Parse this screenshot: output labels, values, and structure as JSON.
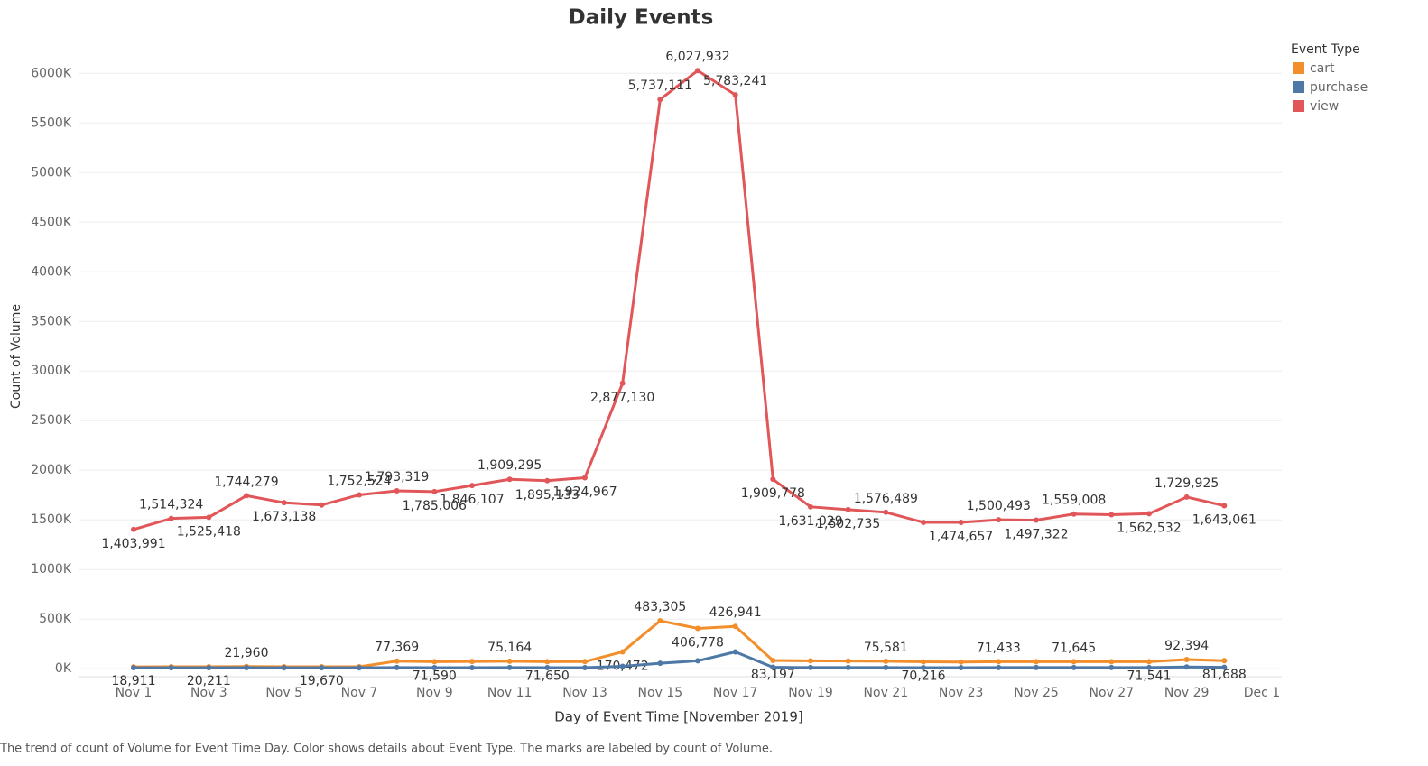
{
  "chart_data": {
    "type": "line",
    "title": "Daily Events",
    "x_label": "Day of Event Time [November 2019]",
    "y_label": "Count of Volume",
    "legend_title": "Event Type",
    "legend_position": "top-right",
    "caption": "The trend of count of Volume for Event Time Day.  Color shows details about Event Type.  The marks are labeled by count of Volume.",
    "categories": [
      "Nov 1",
      null,
      "Nov 3",
      null,
      "Nov 5",
      null,
      "Nov 7",
      null,
      "Nov 9",
      null,
      "Nov 11",
      null,
      "Nov 13",
      null,
      "Nov 15",
      null,
      "Nov 17",
      null,
      "Nov 19",
      null,
      "Nov 21",
      null,
      "Nov 23",
      null,
      "Nov 25",
      null,
      "Nov 27",
      null,
      "Nov 29",
      null,
      "Dec 1"
    ],
    "ylim": [
      -80000,
      6330000
    ],
    "yticks": [
      {
        "value": 0,
        "label": "0K"
      },
      {
        "value": 500000,
        "label": "500K"
      },
      {
        "value": 1000000,
        "label": "1000K"
      },
      {
        "value": 1500000,
        "label": "1500K"
      },
      {
        "value": 2000000,
        "label": "2000K"
      },
      {
        "value": 2500000,
        "label": "2500K"
      },
      {
        "value": 3000000,
        "label": "3000K"
      },
      {
        "value": 3500000,
        "label": "3500K"
      },
      {
        "value": 4000000,
        "label": "4000K"
      },
      {
        "value": 4500000,
        "label": "4500K"
      },
      {
        "value": 5000000,
        "label": "5000K"
      },
      {
        "value": 5500000,
        "label": "5500K"
      },
      {
        "value": 6000000,
        "label": "6000K"
      }
    ],
    "grid": true,
    "series": [
      {
        "name": "cart",
        "color": "#f28e2b",
        "values": [
          18911,
          19500,
          20211,
          21960,
          20000,
          19670,
          20000,
          77369,
          71590,
          73000,
          75164,
          71650,
          72000,
          170472,
          483305,
          406778,
          426941,
          83197,
          80000,
          78000,
          75581,
          70216,
          68000,
          71433,
          71000,
          71645,
          71000,
          71541,
          92394,
          81688,
          null
        ],
        "value_labels": [
          "18,911",
          null,
          "20,211",
          "21,960",
          null,
          "19,670",
          null,
          "77,369",
          "71,590",
          null,
          "75,164",
          "71,650",
          null,
          "170,472",
          "483,305",
          "406,778",
          "426,941",
          "83,197",
          null,
          null,
          "75,581",
          "70,216",
          null,
          "71,433",
          null,
          "71,645",
          null,
          "71,541",
          "92,394",
          "81,688",
          null
        ]
      },
      {
        "name": "purchase",
        "color": "#4e79a7",
        "values": [
          10000,
          10000,
          10000,
          11000,
          10000,
          10000,
          10000,
          12000,
          11000,
          11000,
          12000,
          11000,
          11000,
          25000,
          55000,
          80000,
          170000,
          15000,
          12000,
          12000,
          12000,
          11000,
          11000,
          12000,
          12000,
          12000,
          12000,
          12000,
          18000,
          14000,
          null
        ]
      },
      {
        "name": "view",
        "color": "#e15759",
        "values": [
          1403991,
          1514324,
          1525418,
          1744279,
          1673138,
          1650000,
          1752524,
          1793319,
          1785006,
          1846107,
          1909295,
          1895133,
          1924967,
          2877130,
          5737111,
          6027932,
          5783241,
          1909778,
          1631029,
          1602735,
          1576489,
          1475000,
          1474657,
          1500493,
          1497322,
          1559008,
          1552000,
          1562532,
          1729925,
          1643061,
          null
        ],
        "value_labels": [
          "1,403,991",
          "1,514,324",
          "1,525,418",
          "1,744,279",
          "1,673,138",
          null,
          "1,752,524",
          "1,793,319",
          "1,785,006",
          "1,846,107",
          "1,909,295",
          "1,895,133",
          "1,924,967",
          "2,877,130",
          "5,737,111",
          "6,027,932",
          "5,783,241",
          "1,909,778",
          "1,631,029",
          "1,602,735",
          "1,576,489",
          null,
          "1,474,657",
          "1,500,493",
          "1,497,322",
          "1,559,008",
          null,
          "1,562,532",
          "1,729,925",
          "1,643,061",
          null
        ]
      }
    ]
  }
}
